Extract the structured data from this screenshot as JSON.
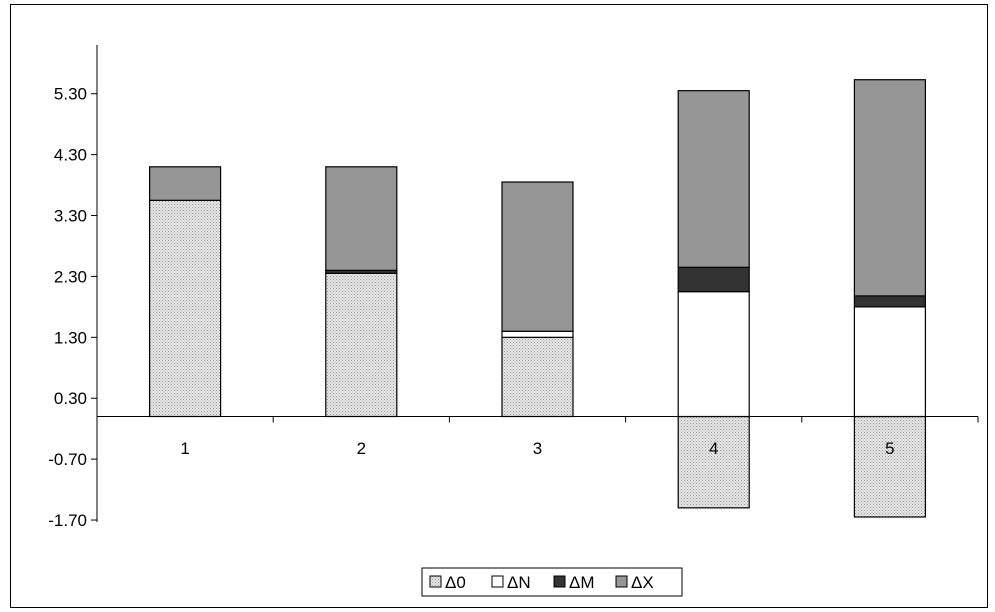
{
  "chart_data": {
    "type": "bar",
    "stacked": true,
    "categories": [
      "1",
      "2",
      "3",
      "4",
      "5"
    ],
    "series": [
      {
        "name": "Δ0",
        "values": [
          3.55,
          2.35,
          1.3,
          -1.5,
          -1.65
        ],
        "color": "#d9d9d9",
        "pattern": "dots"
      },
      {
        "name": "ΔN",
        "values": [
          0.0,
          0.0,
          0.1,
          2.05,
          1.8
        ],
        "color": "#ffffff"
      },
      {
        "name": "ΔM",
        "values": [
          0.0,
          0.05,
          0.0,
          0.4,
          0.18
        ],
        "color": "#333333"
      },
      {
        "name": "ΔX",
        "values": [
          0.55,
          1.7,
          2.45,
          2.9,
          3.55
        ],
        "color": "#969696"
      }
    ],
    "y_ticks": [
      "5.30",
      "4.30",
      "3.30",
      "2.30",
      "1.30",
      "0.30",
      "-0.70",
      "-1.70"
    ],
    "ylim": [
      -1.7,
      6.0
    ],
    "title": "",
    "xlabel": "",
    "ylabel": "",
    "legend_position": "bottom"
  }
}
